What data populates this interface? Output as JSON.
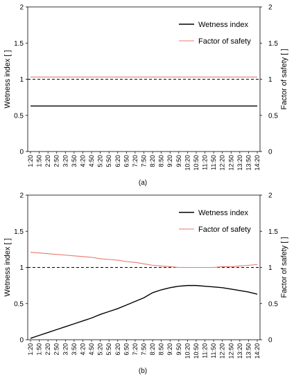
{
  "chart_data": [
    {
      "type": "line",
      "panel_label": "(a)",
      "ylabel": "Wetness index [ ]",
      "ylabel_right": "Factor of safety [ ]",
      "ylim": [
        0,
        2
      ],
      "yticks": [
        "0",
        "0.5",
        "1",
        "1.5",
        "2"
      ],
      "yticks_right": [
        "0",
        "0.5",
        "1",
        "1.5",
        "2"
      ],
      "legend_position": "top-right",
      "x": [
        "1:20",
        "1:50",
        "2:20",
        "2:50",
        "3:20",
        "3:50",
        "4:20",
        "4:50",
        "5:20",
        "5:50",
        "6:20",
        "6:50",
        "7:20",
        "7:50",
        "8:20",
        "8:50",
        "9:20",
        "9:50",
        "10:20",
        "10:50",
        "11:20",
        "11:50",
        "12:20",
        "12:50",
        "13:20",
        "13:50",
        "14:20"
      ],
      "series": [
        {
          "name": "Wetness index",
          "color": "#000000",
          "style": "solid",
          "values": [
            0.63,
            0.63,
            0.63,
            0.63,
            0.63,
            0.63,
            0.63,
            0.63,
            0.63,
            0.63,
            0.63,
            0.63,
            0.63,
            0.63,
            0.63,
            0.63,
            0.63,
            0.63,
            0.63,
            0.63,
            0.63,
            0.63,
            0.63,
            0.63,
            0.63,
            0.63,
            0.63
          ]
        },
        {
          "name": "Factor of safety",
          "color": "#e8786e",
          "style": "solid",
          "values": [
            1.03,
            1.03,
            1.03,
            1.03,
            1.03,
            1.03,
            1.03,
            1.03,
            1.03,
            1.03,
            1.03,
            1.03,
            1.03,
            1.03,
            1.03,
            1.03,
            1.03,
            1.03,
            1.03,
            1.03,
            1.03,
            1.03,
            1.03,
            1.03,
            1.03,
            1.03,
            1.03
          ]
        }
      ],
      "reference_line": {
        "y": 1.0,
        "style": "dashed",
        "color": "#000000"
      }
    },
    {
      "type": "line",
      "panel_label": "(b)",
      "ylabel": "Wetness index [ ]",
      "ylabel_right": "Factor of safety [ ]",
      "ylim": [
        0,
        2
      ],
      "yticks": [
        "0",
        "0.5",
        "1",
        "1.5",
        "2"
      ],
      "yticks_right": [
        "0",
        "0.5",
        "1",
        "1.5",
        "2"
      ],
      "legend_position": "top-right",
      "x": [
        "1:20",
        "1:50",
        "2:20",
        "2:50",
        "3:20",
        "3:50",
        "4:20",
        "4:50",
        "5:20",
        "5:50",
        "6:20",
        "6:50",
        "7:20",
        "7:50",
        "8:20",
        "8:50",
        "9:20",
        "9:50",
        "10:20",
        "10:50",
        "11:20",
        "11:50",
        "12:20",
        "12:50",
        "13:20",
        "13:50",
        "14:20"
      ],
      "series": [
        {
          "name": "Wetness index",
          "color": "#000000",
          "style": "solid",
          "values": [
            0.02,
            0.06,
            0.1,
            0.14,
            0.18,
            0.22,
            0.26,
            0.3,
            0.35,
            0.39,
            0.43,
            0.48,
            0.53,
            0.58,
            0.65,
            0.69,
            0.72,
            0.74,
            0.75,
            0.75,
            0.74,
            0.73,
            0.72,
            0.7,
            0.68,
            0.66,
            0.63
          ]
        },
        {
          "name": "Factor of safety",
          "color": "#e8786e",
          "style": "solid",
          "values": [
            1.21,
            1.2,
            1.19,
            1.18,
            1.17,
            1.16,
            1.15,
            1.14,
            1.12,
            1.11,
            1.1,
            1.08,
            1.07,
            1.05,
            1.03,
            1.02,
            1.01,
            1.0,
            1.0,
            1.0,
            1.0,
            1.0,
            1.01,
            1.01,
            1.02,
            1.03,
            1.04
          ]
        }
      ],
      "reference_line": {
        "y": 1.0,
        "style": "dashed",
        "color": "#000000"
      }
    }
  ]
}
